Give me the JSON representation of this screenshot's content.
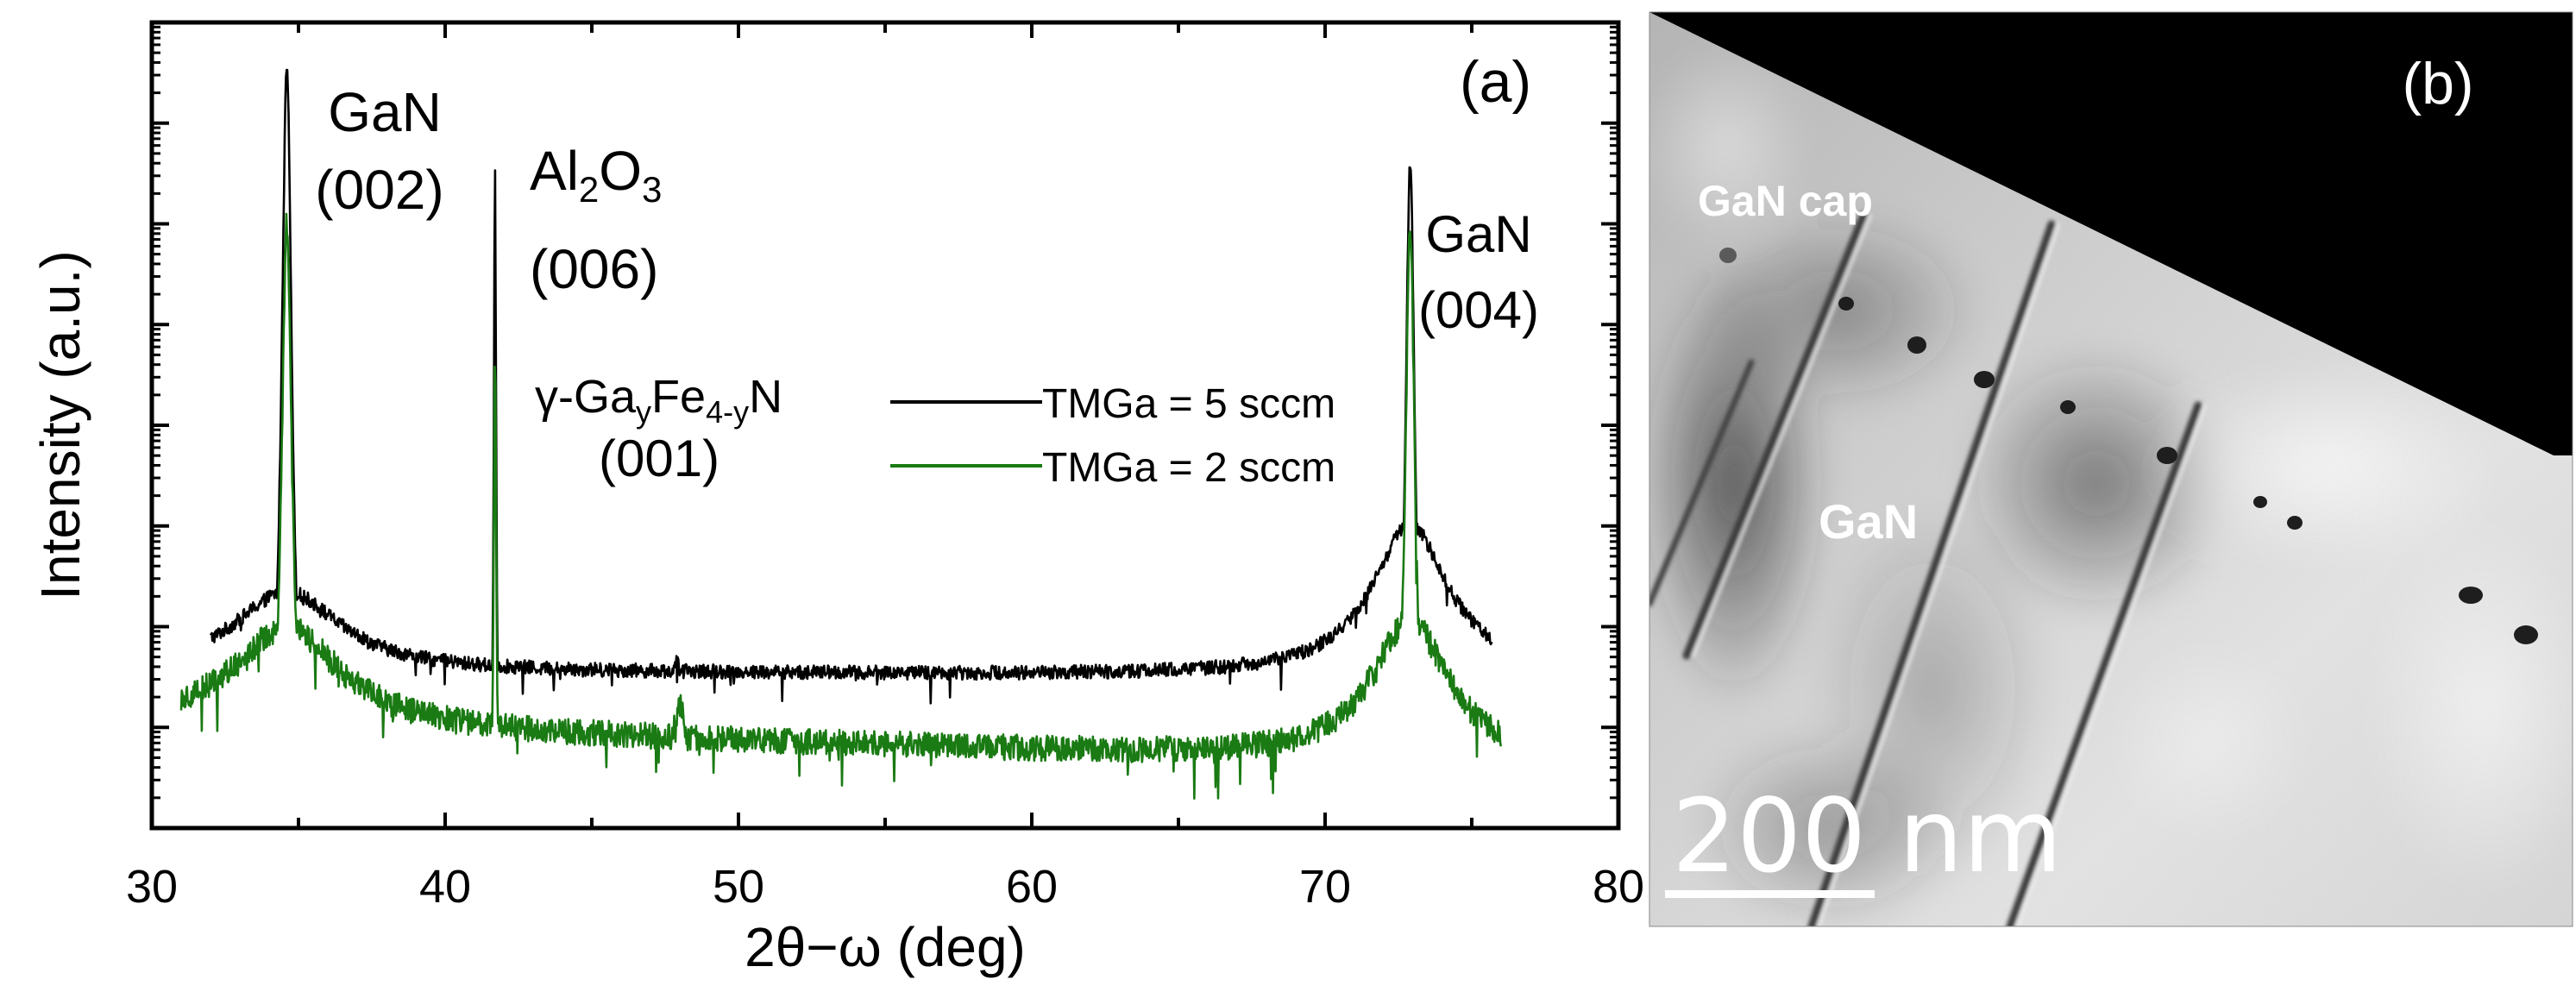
{
  "panel_a": {
    "panel_label": "(a)",
    "chart_data": {
      "type": "line",
      "title": "",
      "xlabel": "2θ−ω (deg)",
      "ylabel": "Intensity (a.u.)",
      "xlim": [
        30,
        80
      ],
      "ylim_log_decades": [
        0,
        8
      ],
      "y_scale": "log",
      "x_ticks": [
        30,
        40,
        50,
        60,
        70,
        80
      ],
      "x_tick_labels": [
        "30",
        "40",
        "50",
        "60",
        "70",
        "80"
      ],
      "y_tick_labels_shown": false,
      "legend_position": "center-right",
      "series": [
        {
          "name": "TMGa = 5 sccm",
          "color": "#000000",
          "x_range": [
            32,
            75.7
          ],
          "background": {
            "start": 1.55,
            "end": 1.5,
            "gan_tail_peak": 34.6,
            "gan_tail_amp": 0.8,
            "gan_tail_peak2": 72.9,
            "gan_tail_amp2": 1.5
          },
          "noise": 0.07,
          "peaks": [
            {
              "x": 34.6,
              "height": 7.6,
              "width": 0.22
            },
            {
              "x": 41.7,
              "height": 6.6,
              "width": 0.05
            },
            {
              "x": 47.9,
              "height": 1.65,
              "width": 0.4
            },
            {
              "x": 52.9,
              "height": 1.2,
              "width": 0.08
            },
            {
              "x": 64.4,
              "height": 1.5,
              "width": 0.03
            },
            {
              "x": 72.9,
              "height": 6.6,
              "width": 0.2
            }
          ]
        },
        {
          "name": "TMGa = 2 sccm",
          "color": "#1a7a13",
          "x_range": [
            31,
            76
          ],
          "background": {
            "start": 1.02,
            "end": 0.63,
            "gan_tail_peak": 34.6,
            "gan_tail_amp": 1.0,
            "gan_tail_peak2": 72.9,
            "gan_tail_amp2": 1.4
          },
          "noise": 0.13,
          "peaks": [
            {
              "x": 34.6,
              "height": 6.0,
              "width": 0.22
            },
            {
              "x": 41.7,
              "height": 4.7,
              "width": 0.05
            },
            {
              "x": 48.0,
              "height": 1.2,
              "width": 0.45
            },
            {
              "x": 52.9,
              "height": 0.9,
              "width": 0.08
            },
            {
              "x": 72.9,
              "height": 6.0,
              "width": 0.2
            }
          ]
        }
      ],
      "annotations": [
        {
          "text": "GaN",
          "sub": "",
          "text2": "(002)"
        },
        {
          "text": "Al",
          "sub1": "2",
          "mid": "O",
          "sub2": "3",
          "text2": "(006)"
        },
        {
          "text": "γ-Ga",
          "sub1": "y",
          "mid": "Fe",
          "sub2": "4-y",
          "end": "N",
          "text2": "(001)"
        },
        {
          "text": "GaN",
          "text2": "(004)"
        }
      ]
    }
  },
  "panel_b": {
    "panel_label": "(b)",
    "labels": {
      "cap": "GaN cap",
      "layer": "GaN"
    },
    "scale_bar": "200 nm"
  }
}
